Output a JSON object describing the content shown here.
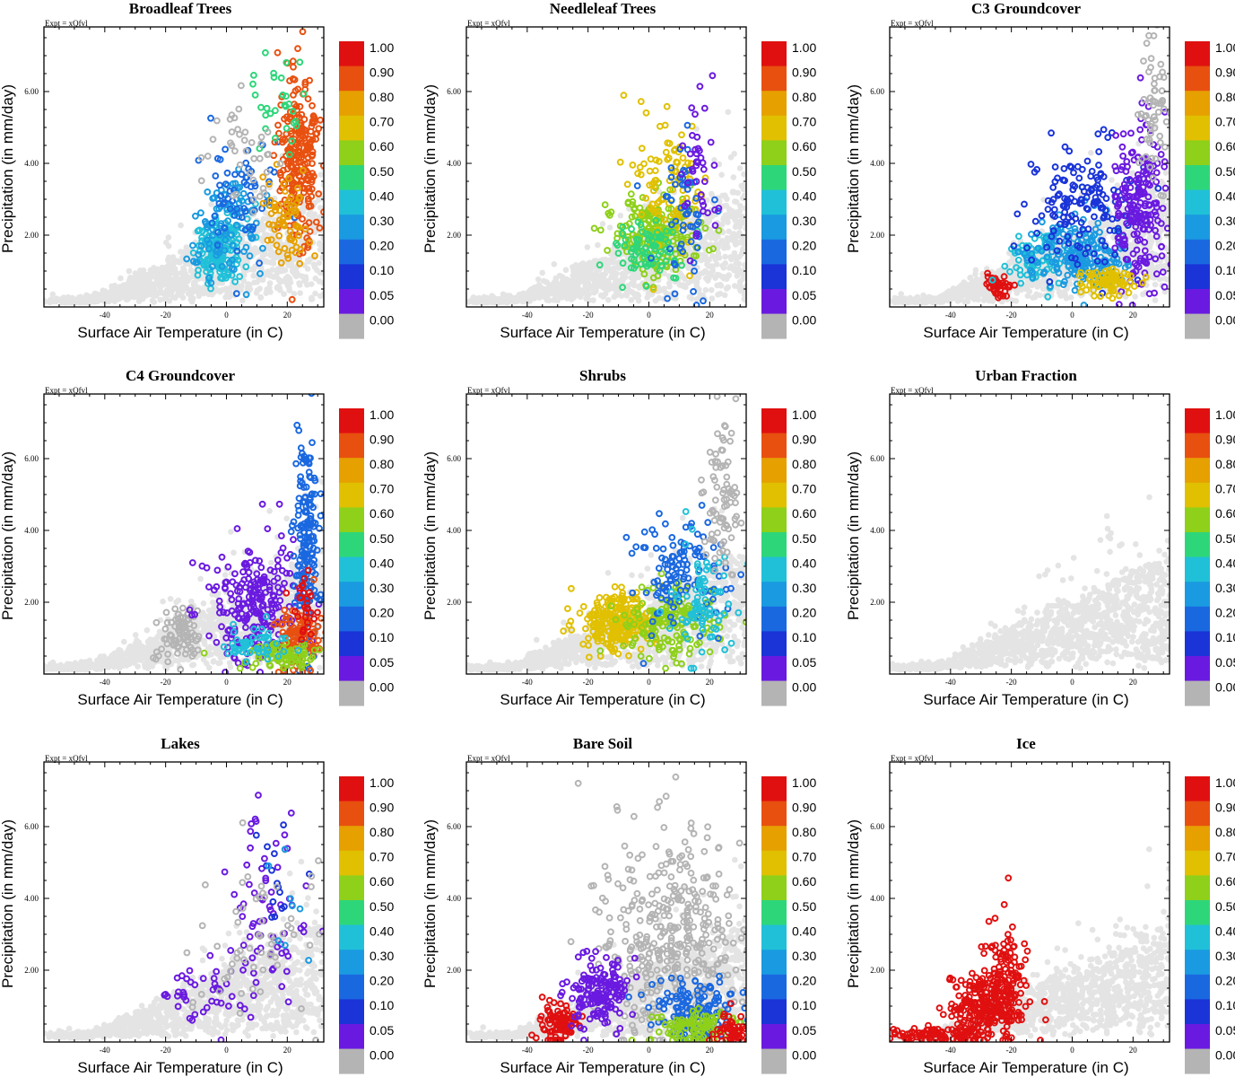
{
  "figure": {
    "expt_label": "Expt = xQfvl",
    "xlabel": "Surface Air Temperature (in C)",
    "ylabel": "Precipitation (in mm/day)",
    "colorbar": {
      "labels": [
        "1.00",
        "0.90",
        "0.80",
        "0.70",
        "0.60",
        "0.50",
        "0.40",
        "0.30",
        "0.20",
        "0.10",
        "0.05",
        "0.00"
      ],
      "colors": [
        "#e01010",
        "#e85010",
        "#e6a000",
        "#e0c000",
        "#8ed01a",
        "#2ed67a",
        "#20c0d8",
        "#1a9ae0",
        "#1a68e0",
        "#1a34d8",
        "#6a1ae0",
        "#b4b4b4"
      ]
    },
    "background_color": "#e4e4e4"
  },
  "chart_data": [
    {
      "type": "scatter",
      "title": "Broadleaf Trees",
      "xlabel": "Surface Air Temperature (in C)",
      "ylabel": "Precipitation (in mm/day)",
      "xlim": [
        -60,
        32
      ],
      "ylim": [
        0,
        7.8
      ],
      "xticks": [
        "-40",
        "-20",
        "0",
        "20"
      ],
      "yticks": [
        "2.00",
        "4.00",
        "6.00"
      ],
      "clusters": [
        {
          "cx": -2,
          "cy": 1.6,
          "sx": 4,
          "sy": 0.5,
          "n": 160,
          "color": "#20c0d8"
        },
        {
          "cx": 0,
          "cy": 2.3,
          "sx": 6,
          "sy": 0.7,
          "n": 100,
          "color": "#1a9ae0"
        },
        {
          "cx": 5,
          "cy": 3.2,
          "sx": 7,
          "sy": 0.8,
          "n": 60,
          "color": "#1a68e0"
        },
        {
          "cx": 24,
          "cy": 4.2,
          "sx": 3,
          "sy": 1.3,
          "n": 230,
          "color": "#e85010"
        },
        {
          "cx": 20,
          "cy": 2.3,
          "sx": 4,
          "sy": 0.6,
          "n": 70,
          "color": "#e6a000"
        },
        {
          "cx": 17,
          "cy": 5.5,
          "sx": 4,
          "sy": 0.7,
          "n": 30,
          "color": "#2ed67a"
        },
        {
          "cx": 6,
          "cy": 4.2,
          "sx": 6,
          "sy": 1.0,
          "n": 40,
          "color": "#b4b4b4"
        }
      ]
    },
    {
      "type": "scatter",
      "title": "Needleleaf Trees",
      "xlabel": "Surface Air Temperature (in C)",
      "ylabel": "Precipitation (in mm/day)",
      "xlim": [
        -60,
        32
      ],
      "ylim": [
        0,
        7.8
      ],
      "xticks": [
        "-40",
        "-20",
        "0",
        "20"
      ],
      "yticks": [
        "2.00",
        "4.00",
        "6.00"
      ],
      "clusters": [
        {
          "cx": 2,
          "cy": 2.0,
          "sx": 7,
          "sy": 0.6,
          "n": 200,
          "color": "#8ed01a"
        },
        {
          "cx": 6,
          "cy": 3.4,
          "sx": 6,
          "sy": 1.0,
          "n": 100,
          "color": "#e0c000"
        },
        {
          "cx": 0,
          "cy": 1.6,
          "sx": 6,
          "sy": 0.4,
          "n": 80,
          "color": "#2ed67a"
        },
        {
          "cx": 12,
          "cy": 2.5,
          "sx": 5,
          "sy": 1.2,
          "n": 60,
          "color": "#1a68e0"
        },
        {
          "cx": 16,
          "cy": 4.0,
          "sx": 3,
          "sy": 1.3,
          "n": 40,
          "color": "#6a1ae0"
        }
      ]
    },
    {
      "type": "scatter",
      "title": "C3 Groundcover",
      "xlabel": "Surface Air Temperature (in C)",
      "ylabel": "Precipitation (in mm/day)",
      "xlim": [
        -60,
        32
      ],
      "ylim": [
        0,
        7.8
      ],
      "xticks": [
        "-40",
        "-20",
        "0",
        "20"
      ],
      "yticks": [
        "2.00",
        "4.00",
        "6.00"
      ],
      "clusters": [
        {
          "cx": -24,
          "cy": 0.6,
          "sx": 2.5,
          "sy": 0.2,
          "n": 40,
          "color": "#e01010"
        },
        {
          "cx": -12,
          "cy": 1.3,
          "sx": 5,
          "sy": 0.4,
          "n": 80,
          "color": "#20c0d8"
        },
        {
          "cx": 2,
          "cy": 1.5,
          "sx": 8,
          "sy": 0.5,
          "n": 200,
          "color": "#1a9ae0"
        },
        {
          "cx": 4,
          "cy": 2.7,
          "sx": 8,
          "sy": 0.9,
          "n": 160,
          "color": "#1a34d8"
        },
        {
          "cx": 22,
          "cy": 2.8,
          "sx": 4,
          "sy": 1.2,
          "n": 200,
          "color": "#6a1ae0"
        },
        {
          "cx": 12,
          "cy": 0.7,
          "sx": 5,
          "sy": 0.2,
          "n": 80,
          "color": "#e0c000"
        },
        {
          "cx": 27,
          "cy": 5.5,
          "sx": 2.5,
          "sy": 1.2,
          "n": 60,
          "color": "#b4b4b4"
        }
      ]
    },
    {
      "type": "scatter",
      "title": "C4 Groundcover",
      "xlabel": "Surface Air Temperature (in C)",
      "ylabel": "Precipitation (in mm/day)",
      "xlim": [
        -60,
        32
      ],
      "ylim": [
        0,
        7.8
      ],
      "xticks": [
        "-40",
        "-20",
        "0",
        "20"
      ],
      "yticks": [
        "2.00",
        "4.00",
        "6.00"
      ],
      "clusters": [
        {
          "cx": -15,
          "cy": 1.1,
          "sx": 4,
          "sy": 0.4,
          "n": 80,
          "color": "#b4b4b4"
        },
        {
          "cx": 10,
          "cy": 1.9,
          "sx": 8,
          "sy": 0.9,
          "n": 230,
          "color": "#6a1ae0"
        },
        {
          "cx": 26,
          "cy": 3.6,
          "sx": 2,
          "sy": 1.6,
          "n": 180,
          "color": "#1a68e0"
        },
        {
          "cx": 24,
          "cy": 1.0,
          "sx": 4,
          "sy": 0.5,
          "n": 100,
          "color": "#e85010"
        },
        {
          "cx": 18,
          "cy": 0.5,
          "sx": 6,
          "sy": 0.2,
          "n": 80,
          "color": "#8ed01a"
        },
        {
          "cx": 26,
          "cy": 1.9,
          "sx": 2,
          "sy": 0.5,
          "n": 30,
          "color": "#e01010"
        },
        {
          "cx": 8,
          "cy": 0.8,
          "sx": 6,
          "sy": 0.3,
          "n": 50,
          "color": "#20c0d8"
        }
      ]
    },
    {
      "type": "scatter",
      "title": "Shrubs",
      "xlabel": "Surface Air Temperature (in C)",
      "ylabel": "Precipitation (in mm/day)",
      "xlim": [
        -60,
        32
      ],
      "ylim": [
        0,
        7.8
      ],
      "xticks": [
        "-40",
        "-20",
        "0",
        "20"
      ],
      "yticks": [
        "2.00",
        "4.00",
        "6.00"
      ],
      "clusters": [
        {
          "cx": -10,
          "cy": 1.4,
          "sx": 6,
          "sy": 0.4,
          "n": 260,
          "color": "#e0c000"
        },
        {
          "cx": 8,
          "cy": 1.5,
          "sx": 8,
          "sy": 0.5,
          "n": 160,
          "color": "#8ed01a"
        },
        {
          "cx": 10,
          "cy": 2.8,
          "sx": 8,
          "sy": 0.8,
          "n": 120,
          "color": "#1a68e0"
        },
        {
          "cx": 18,
          "cy": 1.9,
          "sx": 6,
          "sy": 0.7,
          "n": 80,
          "color": "#20c0d8"
        },
        {
          "cx": 24,
          "cy": 5.0,
          "sx": 3,
          "sy": 1.2,
          "n": 80,
          "color": "#b4b4b4"
        }
      ]
    },
    {
      "type": "scatter",
      "title": "Urban Fraction",
      "xlabel": "Surface Air Temperature (in C)",
      "ylabel": "Precipitation (in mm/day)",
      "xlim": [
        -60,
        32
      ],
      "ylim": [
        0,
        7.8
      ],
      "xticks": [
        "-40",
        "-20",
        "0",
        "20"
      ],
      "yticks": [
        "2.00",
        "4.00",
        "6.00"
      ],
      "clusters": []
    },
    {
      "type": "scatter",
      "title": "Lakes",
      "xlabel": "Surface Air Temperature (in C)",
      "ylabel": "Precipitation (in mm/day)",
      "xlim": [
        -60,
        32
      ],
      "ylim": [
        0,
        7.8
      ],
      "xticks": [
        "-40",
        "-20",
        "0",
        "20"
      ],
      "yticks": [
        "2.00",
        "4.00",
        "6.00"
      ],
      "clusters": [
        {
          "cx": -6,
          "cy": 1.5,
          "sx": 8,
          "sy": 0.4,
          "n": 40,
          "color": "#6a1ae0"
        },
        {
          "cx": 14,
          "cy": 3.8,
          "sx": 7,
          "sy": 1.3,
          "n": 70,
          "color": "#6a1ae0"
        },
        {
          "cx": 18,
          "cy": 5.0,
          "sx": 4,
          "sy": 1.2,
          "n": 15,
          "color": "#1a34d8"
        },
        {
          "cx": 10,
          "cy": 2.8,
          "sx": 10,
          "sy": 1.2,
          "n": 60,
          "color": "#b4b4b4"
        },
        {
          "cx": 20,
          "cy": 4.0,
          "sx": 4,
          "sy": 1.0,
          "n": 8,
          "color": "#1a9ae0"
        }
      ]
    },
    {
      "type": "scatter",
      "title": "Bare Soil",
      "xlabel": "Surface Air Temperature (in C)",
      "ylabel": "Precipitation (in mm/day)",
      "xlim": [
        -60,
        32
      ],
      "ylim": [
        0,
        7.8
      ],
      "xticks": [
        "-40",
        "-20",
        "0",
        "20"
      ],
      "yticks": [
        "2.00",
        "4.00",
        "6.00"
      ],
      "clusters": [
        {
          "cx": 8,
          "cy": 2.9,
          "sx": 12,
          "sy": 1.5,
          "n": 400,
          "color": "#b4b4b4"
        },
        {
          "cx": -30,
          "cy": 0.5,
          "sx": 3,
          "sy": 0.3,
          "n": 100,
          "color": "#e01010"
        },
        {
          "cx": -16,
          "cy": 1.4,
          "sx": 5,
          "sy": 0.5,
          "n": 160,
          "color": "#6a1ae0"
        },
        {
          "cx": 16,
          "cy": 0.9,
          "sx": 8,
          "sy": 0.5,
          "n": 150,
          "color": "#1a68e0"
        },
        {
          "cx": 15,
          "cy": 0.4,
          "sx": 7,
          "sy": 0.25,
          "n": 100,
          "color": "#8ed01a"
        },
        {
          "cx": 26,
          "cy": 0.3,
          "sx": 3,
          "sy": 0.2,
          "n": 50,
          "color": "#e01010"
        }
      ]
    },
    {
      "type": "scatter",
      "title": "Ice",
      "xlabel": "Surface Air Temperature (in C)",
      "ylabel": "Precipitation (in mm/day)",
      "xlim": [
        -60,
        32
      ],
      "ylim": [
        0,
        7.8
      ],
      "xticks": [
        "-40",
        "-20",
        "0",
        "20"
      ],
      "yticks": [
        "2.00",
        "4.00",
        "6.00"
      ],
      "clusters": [
        {
          "cx": -45,
          "cy": 0.2,
          "sx": 8,
          "sy": 0.1,
          "n": 100,
          "color": "#e01010"
        },
        {
          "cx": -28,
          "cy": 1.0,
          "sx": 6,
          "sy": 0.5,
          "n": 260,
          "color": "#e01010"
        },
        {
          "cx": -22,
          "cy": 2.2,
          "sx": 4,
          "sy": 0.6,
          "n": 80,
          "color": "#e01010"
        }
      ]
    }
  ]
}
